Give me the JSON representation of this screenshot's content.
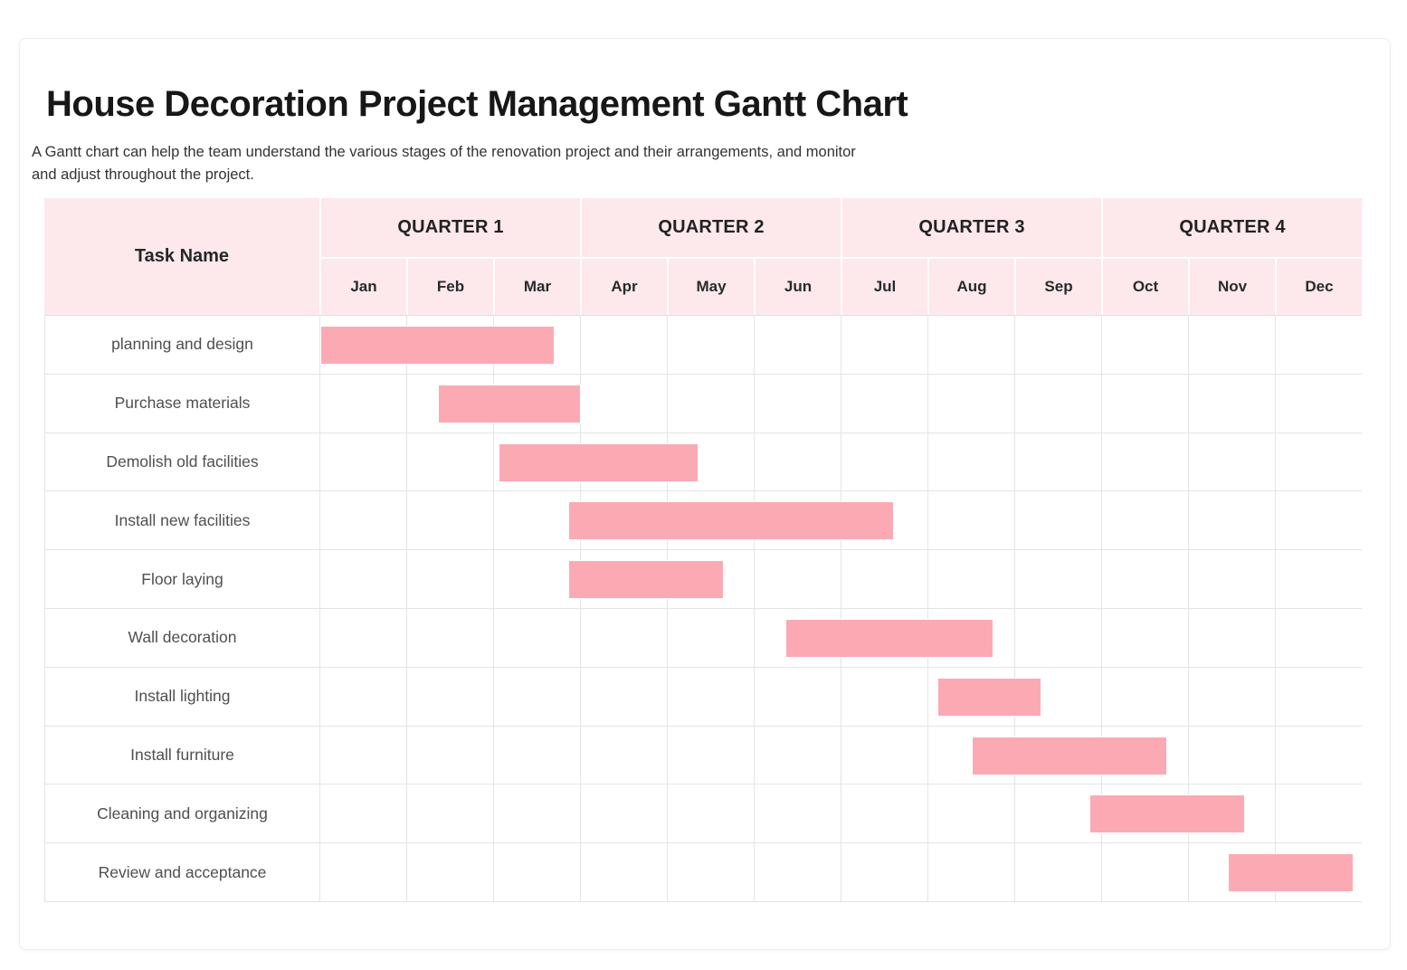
{
  "page": {
    "title": "House Decoration Project Management Gantt Chart",
    "subtitle_lines": [
      "A Gantt chart can help the team understand the various stages of the renovation project and their arrangements, and monitor",
      "and adjust throughout the project."
    ]
  },
  "chart_data": {
    "type": "gantt",
    "title": "House Decoration Project Management Gantt Chart",
    "task_column_header": "Task Name",
    "quarter_headers": [
      "QUARTER 1",
      "QUARTER 2",
      "QUARTER 3",
      "QUARTER 4"
    ],
    "month_labels": [
      "Jan",
      "Feb",
      "Mar",
      "Apr",
      "May",
      "Jun",
      "Jul",
      "Aug",
      "Sep",
      "Oct",
      "Nov",
      "Dec"
    ],
    "axis": {
      "unit": "month",
      "range_months": [
        0,
        12
      ],
      "months_per_quarter": 3,
      "grid": "on"
    },
    "tasks": [
      {
        "name": "planning and design",
        "start_month": 0.0,
        "end_month": 2.7
      },
      {
        "name": "Purchase materials",
        "start_month": 1.35,
        "end_month": 3.0
      },
      {
        "name": "Demolish old facilities",
        "start_month": 2.05,
        "end_month": 4.35
      },
      {
        "name": "Install new facilities",
        "start_month": 2.85,
        "end_month": 6.6
      },
      {
        "name": "Floor laying",
        "start_month": 2.85,
        "end_month": 4.65
      },
      {
        "name": "Wall decoration",
        "start_month": 5.35,
        "end_month": 7.75
      },
      {
        "name": "Install lighting",
        "start_month": 7.1,
        "end_month": 8.3
      },
      {
        "name": "Install furniture",
        "start_month": 7.5,
        "end_month": 9.75
      },
      {
        "name": "Cleaning and organizing",
        "start_month": 8.85,
        "end_month": 10.65
      },
      {
        "name": "Review and acceptance",
        "start_month": 10.45,
        "end_month": 11.9
      }
    ],
    "colors": {
      "bar": "#fbaab4",
      "header_bg": "#fde8ec",
      "gridline": "#e4e4e4"
    }
  }
}
